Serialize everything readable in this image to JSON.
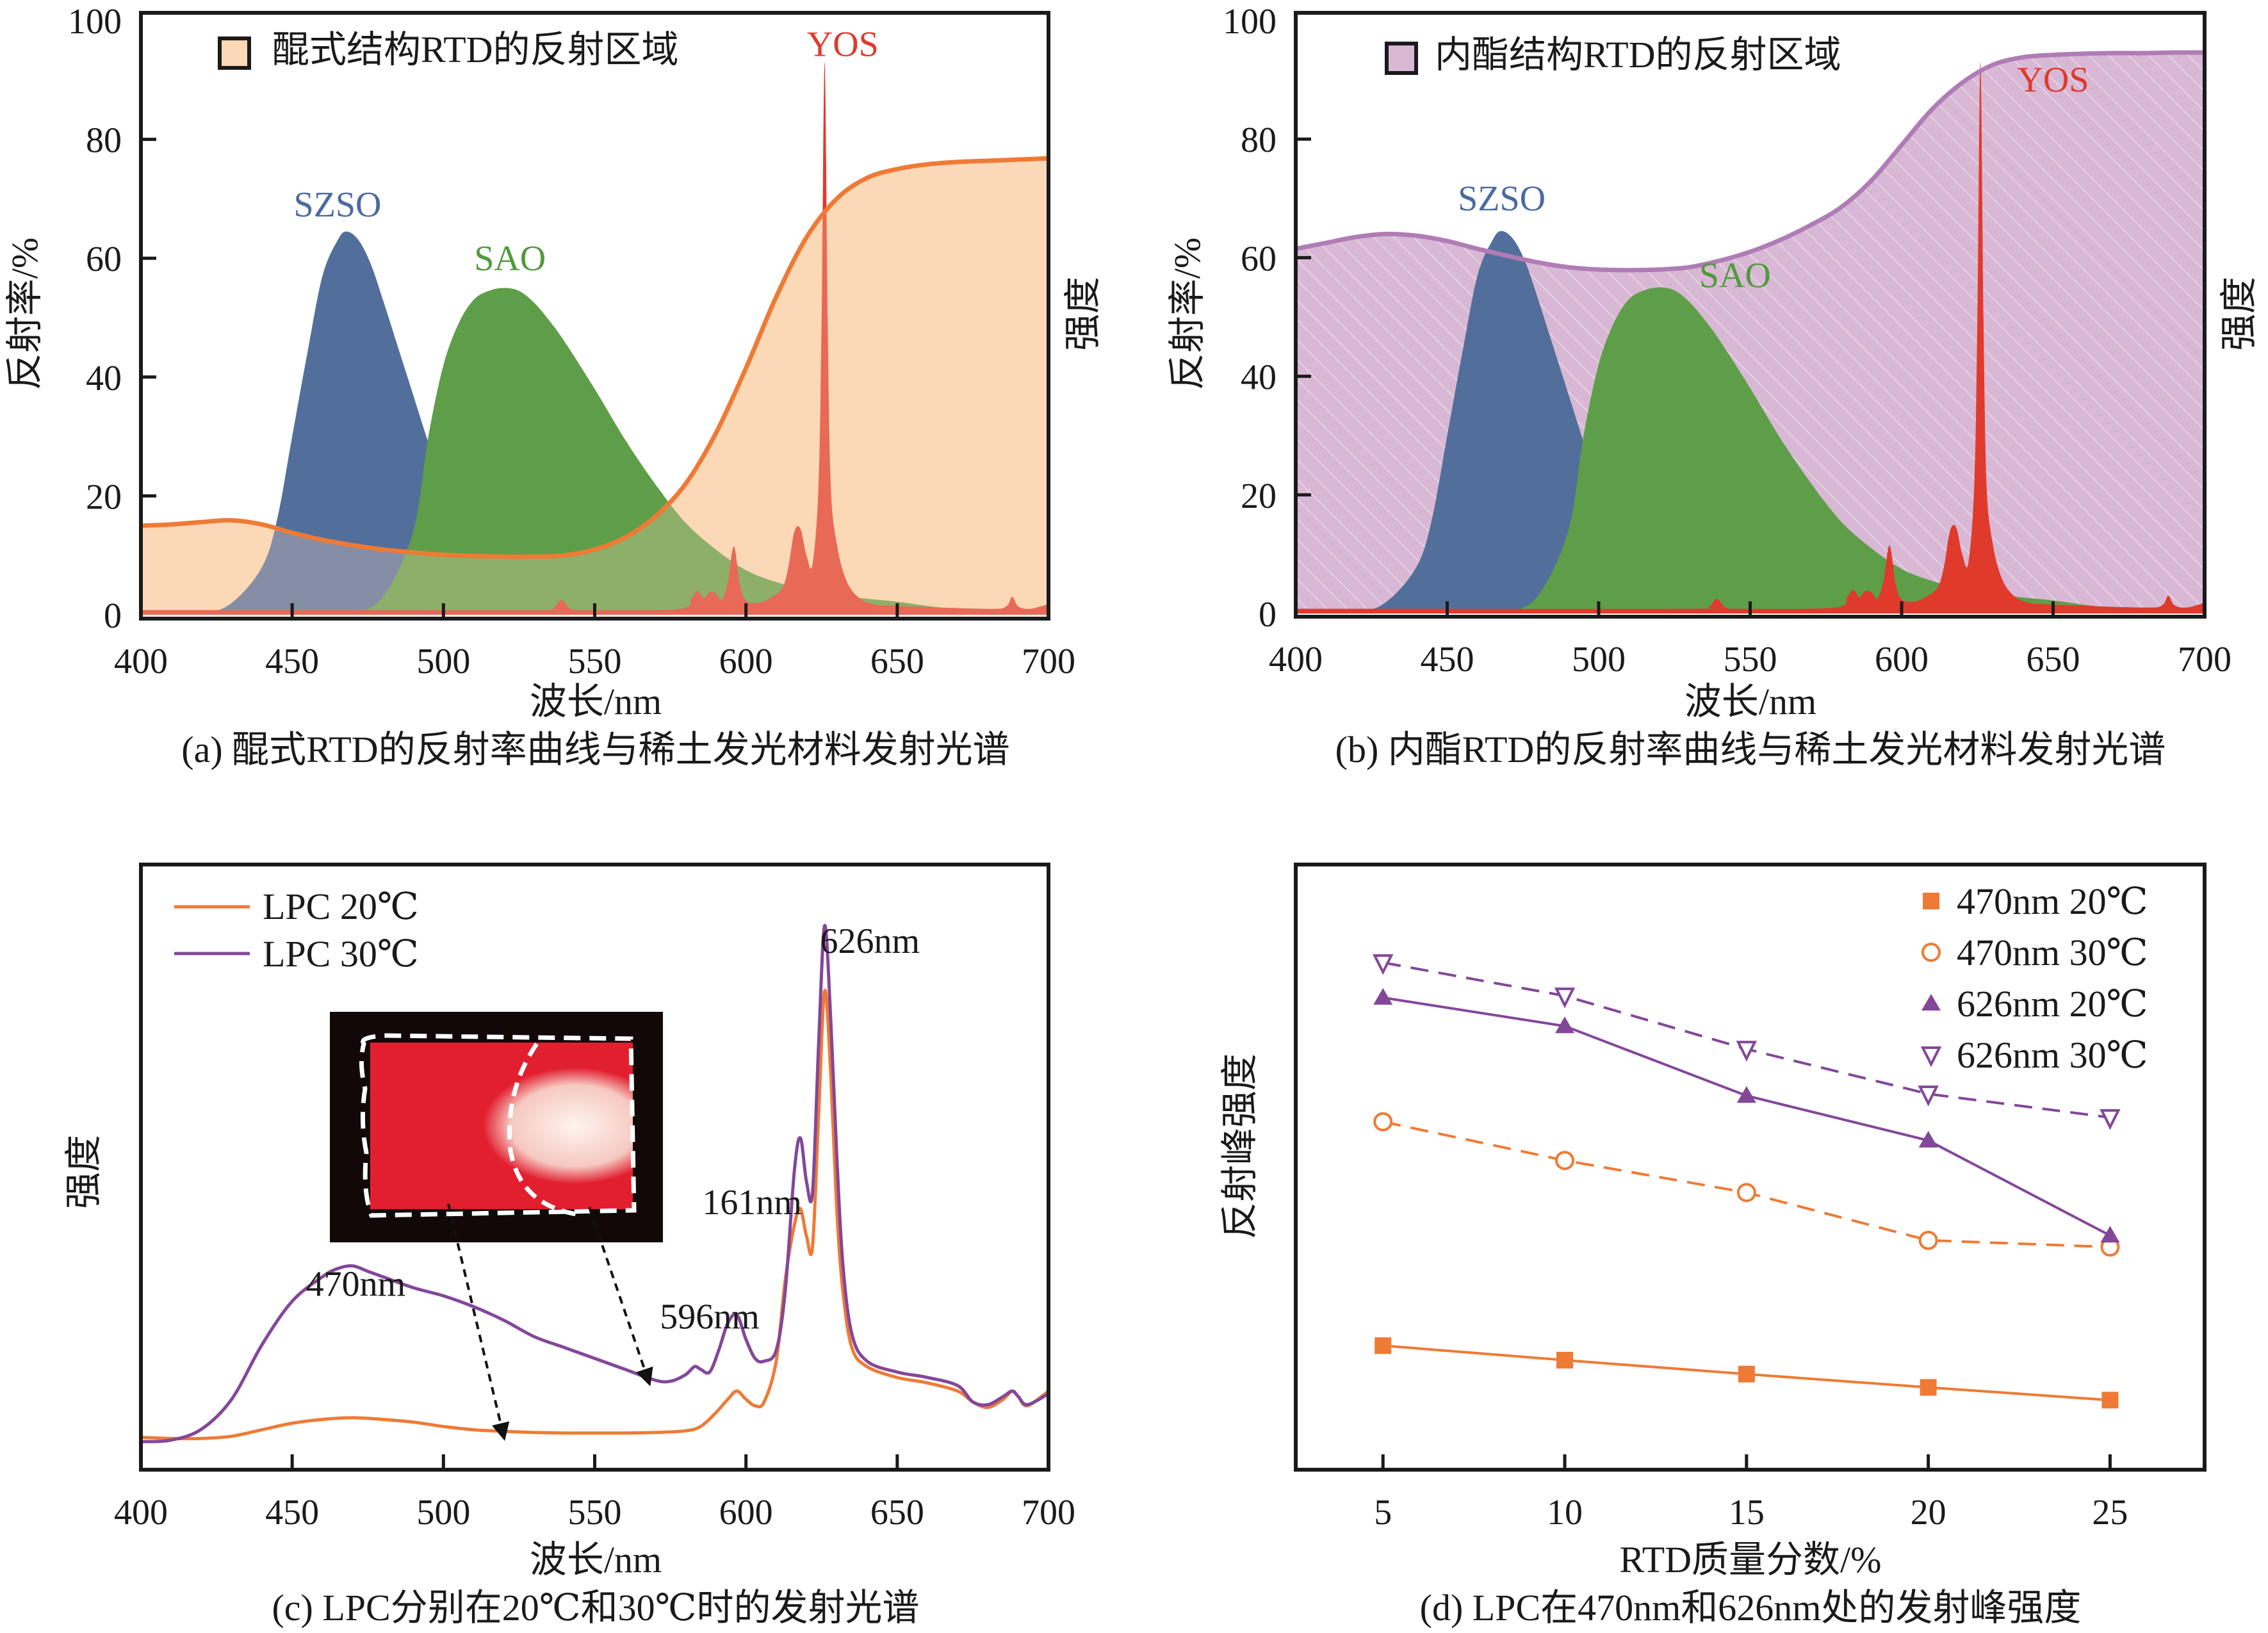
{
  "figure": {
    "colors": {
      "szso": "#526f9c",
      "sao": "#5e9e48",
      "yos": "#e03a2c",
      "quinone_fill": "#fbd8b6",
      "quinone_line": "#ef7a35",
      "lactone_fill": "#d8b8d4",
      "lactone_line": "#b07cb6",
      "lpc20": "#ef7a35",
      "lpc30": "#83479a",
      "szso_label": "#4a6aa0",
      "sao_label": "#4f9a3c",
      "yos_label": "#e03a2c"
    }
  },
  "chart_data": [
    {
      "id": "a",
      "type": "area",
      "caption": "(a) 醌式RTD的反射率曲线与稀土发光材料发射光谱",
      "xlabel": "波长/nm",
      "ylabel": "反射率/%",
      "ylabel_right": "强度",
      "xlim": [
        400,
        700
      ],
      "ylim": [
        0,
        100
      ],
      "xticks": [
        "400",
        "450",
        "500",
        "550",
        "600",
        "650",
        "700"
      ],
      "yticks": [
        "0",
        "20",
        "40",
        "60",
        "80",
        "100"
      ],
      "legend": {
        "label": "醌式结构RTD的反射区域",
        "position": "top-left"
      },
      "annotations": [
        {
          "text": "SZSO",
          "x": 465,
          "y": 67,
          "color_key": "szso_label"
        },
        {
          "text": "SAO",
          "x": 522,
          "y": 58,
          "color_key": "sao_label"
        },
        {
          "text": "YOS",
          "x": 632,
          "y": 94,
          "color_key": "yos_label"
        }
      ],
      "reflectance": {
        "name": "醌式结构RTD的反射区域",
        "x": [
          400,
          410,
          420,
          430,
          440,
          450,
          460,
          470,
          480,
          490,
          500,
          510,
          520,
          530,
          540,
          550,
          560,
          570,
          580,
          590,
          600,
          610,
          620,
          630,
          640,
          650,
          660,
          670,
          680,
          690,
          700
        ],
        "y": [
          15,
          15.2,
          15.6,
          15.9,
          15.2,
          13.8,
          12.6,
          11.7,
          11.0,
          10.5,
          10.1,
          9.9,
          9.8,
          9.8,
          10.0,
          11.0,
          13.0,
          16.5,
          22.0,
          30.5,
          41.5,
          53.5,
          63.5,
          70.0,
          73.5,
          75.0,
          75.8,
          76.2,
          76.4,
          76.6,
          76.8
        ]
      },
      "emission": [
        {
          "name": "SZSO",
          "x": [
            400,
            420,
            430,
            440,
            445,
            450,
            455,
            460,
            465,
            468,
            472,
            476,
            480,
            485,
            490,
            495,
            500,
            510,
            520,
            530,
            540,
            550,
            560,
            570,
            580,
            590,
            600
          ],
          "y": [
            0,
            0.3,
            2,
            8,
            16,
            30,
            44,
            57,
            63,
            64.5,
            63,
            59,
            53,
            45,
            37,
            29,
            22,
            13.5,
            9,
            6.5,
            5,
            3.8,
            2.7,
            1.8,
            1.2,
            0.7,
            0
          ]
        },
        {
          "name": "SAO",
          "x": [
            470,
            480,
            490,
            495,
            500,
            505,
            510,
            515,
            520,
            525,
            530,
            535,
            540,
            550,
            560,
            570,
            580,
            590,
            600,
            610,
            620,
            630,
            640,
            650,
            660,
            670,
            680,
            690,
            700
          ],
          "y": [
            0,
            3,
            14,
            30,
            42,
            49,
            53,
            54.5,
            55,
            54.5,
            52.5,
            49.5,
            46,
            38,
            29.5,
            22,
            15.5,
            11,
            7.5,
            5.5,
            4.2,
            3.3,
            2.7,
            2.2,
            1.5,
            0.9,
            0.5,
            0.3,
            0.2
          ]
        },
        {
          "name": "YOS",
          "x": [
            400,
            530,
            536,
            539,
            542,
            548,
            578,
            582,
            584,
            586,
            588,
            590,
            592,
            594,
            596,
            598,
            600,
            604,
            608,
            612,
            614,
            616,
            618,
            620,
            622,
            624,
            625,
            626,
            627,
            628,
            630,
            633,
            637,
            642,
            650,
            680,
            686,
            688,
            690,
            694,
            700
          ],
          "y": [
            0.8,
            0.8,
            1.0,
            2.5,
            1.0,
            0.8,
            1.0,
            2.8,
            4.0,
            2.8,
            3.8,
            3.6,
            2.5,
            5.5,
            11.5,
            5.0,
            2.4,
            2.0,
            2.8,
            4.5,
            8.0,
            14.0,
            14.5,
            10.0,
            8.5,
            22.0,
            50.0,
            93.0,
            50.0,
            22.0,
            12.0,
            6.0,
            3.0,
            1.8,
            1.5,
            1.0,
            1.4,
            3.0,
            1.4,
            1.0,
            1.8
          ]
        }
      ]
    },
    {
      "id": "b",
      "type": "area",
      "caption": "(b) 内酯RTD的反射率曲线与稀土发光材料发射光谱",
      "xlabel": "波长/nm",
      "ylabel": "反射率/%",
      "ylabel_right": "强度",
      "xlim": [
        400,
        700
      ],
      "ylim": [
        0,
        100
      ],
      "xticks": [
        "400",
        "450",
        "500",
        "550",
        "600",
        "650",
        "700"
      ],
      "yticks": [
        "0",
        "20",
        "40",
        "60",
        "80",
        "100"
      ],
      "legend": {
        "label": "内酯结构RTD的反射区域",
        "position": "top-left"
      },
      "annotations": [
        {
          "text": "SZSO",
          "x": 468,
          "y": 68,
          "color_key": "szso_label"
        },
        {
          "text": "SAO",
          "x": 545,
          "y": 55,
          "color_key": "sao_label"
        },
        {
          "text": "YOS",
          "x": 650,
          "y": 88,
          "color_key": "yos_label"
        }
      ],
      "reflectance": {
        "name": "内酯结构RTD的反射区域",
        "x": [
          400,
          410,
          420,
          430,
          440,
          450,
          460,
          470,
          480,
          490,
          500,
          510,
          520,
          530,
          540,
          550,
          560,
          570,
          580,
          590,
          600,
          610,
          620,
          630,
          640,
          650,
          660,
          670,
          680,
          690,
          700
        ],
        "y": [
          61.5,
          62.5,
          63.5,
          64.0,
          63.7,
          62.8,
          61.5,
          60.3,
          59.2,
          58.4,
          58.0,
          57.9,
          58.0,
          58.4,
          59.5,
          61.0,
          63.0,
          65.5,
          68.5,
          73.0,
          79.0,
          85.0,
          89.5,
          92.5,
          93.8,
          94.2,
          94.4,
          94.5,
          94.5,
          94.6,
          94.6
        ]
      },
      "emission": [
        {
          "name": "SZSO",
          "x": [
            400,
            420,
            430,
            440,
            445,
            450,
            455,
            460,
            465,
            468,
            472,
            476,
            480,
            485,
            490,
            495,
            500,
            510,
            520,
            530,
            540,
            550,
            560,
            570,
            580,
            590,
            600
          ],
          "y": [
            0,
            0.3,
            2,
            8,
            16,
            30,
            44,
            57,
            63,
            64.5,
            63,
            59,
            53,
            45,
            37,
            29,
            22,
            13.5,
            9,
            6.5,
            5,
            3.8,
            2.7,
            1.8,
            1.2,
            0.7,
            0
          ]
        },
        {
          "name": "SAO",
          "x": [
            470,
            480,
            490,
            495,
            500,
            505,
            510,
            515,
            520,
            525,
            530,
            535,
            540,
            550,
            560,
            570,
            580,
            590,
            600,
            610,
            620,
            630,
            640,
            650,
            660,
            670,
            680,
            690,
            700
          ],
          "y": [
            0,
            3,
            14,
            30,
            42,
            49,
            53,
            54.5,
            55,
            54.5,
            52.5,
            49.5,
            46,
            38,
            29.5,
            22,
            15.5,
            11,
            7.5,
            5.5,
            4.2,
            3.3,
            2.7,
            2.2,
            1.5,
            0.9,
            0.5,
            0.3,
            0.2
          ]
        },
        {
          "name": "YOS",
          "x": [
            400,
            530,
            536,
            539,
            542,
            548,
            578,
            582,
            584,
            586,
            588,
            590,
            592,
            594,
            596,
            598,
            600,
            604,
            608,
            612,
            614,
            616,
            618,
            620,
            622,
            624,
            625,
            626,
            627,
            628,
            630,
            633,
            637,
            642,
            650,
            680,
            686,
            688,
            690,
            694,
            700
          ],
          "y": [
            0.8,
            0.8,
            1.0,
            2.5,
            1.0,
            0.8,
            1.0,
            2.8,
            4.0,
            2.8,
            3.8,
            3.6,
            2.5,
            5.5,
            11.5,
            5.0,
            2.4,
            2.0,
            2.8,
            4.5,
            8.0,
            14.0,
            14.5,
            10.0,
            8.5,
            22.0,
            50.0,
            93.0,
            50.0,
            22.0,
            12.0,
            6.0,
            3.0,
            1.8,
            1.5,
            1.0,
            1.4,
            3.0,
            1.4,
            1.0,
            1.8
          ]
        }
      ]
    },
    {
      "id": "c",
      "type": "line",
      "caption": "(c) LPC分别在20℃和30℃时的发射光谱",
      "xlabel": "波长/nm",
      "ylabel": "强度",
      "xlim": [
        400,
        700
      ],
      "ylim": [
        0,
        100
      ],
      "xticks": [
        "400",
        "450",
        "500",
        "550",
        "600",
        "650",
        "700"
      ],
      "legend": {
        "position": "top-left"
      },
      "annotations": [
        {
          "text": "626nm",
          "x": 641,
          "y": 92
        },
        {
          "text": "161nm",
          "x": 602,
          "y": 44
        },
        {
          "text": "470nm",
          "x": 471,
          "y": 29
        },
        {
          "text": "596nm",
          "x": 588,
          "y": 23
        }
      ],
      "inset": {
        "description": "LPC sample photo",
        "arrow_targets": [
          [
            520,
            3
          ],
          [
            568,
            13
          ]
        ]
      },
      "series": [
        {
          "name": "LPC 20℃",
          "color_key": "lpc20",
          "x": [
            400,
            410,
            420,
            430,
            440,
            450,
            460,
            470,
            480,
            490,
            500,
            510,
            520,
            530,
            540,
            550,
            560,
            570,
            580,
            585,
            590,
            594,
            597,
            600,
            603,
            606,
            610,
            613,
            616,
            618,
            620,
            622,
            624,
            626,
            628,
            630,
            632,
            635,
            640,
            650,
            660,
            670,
            675,
            680,
            685,
            688,
            690,
            693,
            700
          ],
          "y": [
            3.0,
            2.8,
            2.8,
            3.2,
            4.4,
            5.6,
            6.3,
            6.6,
            6.3,
            5.8,
            5.0,
            4.4,
            4.1,
            3.9,
            3.8,
            3.8,
            3.8,
            3.9,
            4.2,
            5.0,
            7.5,
            10.0,
            11.5,
            10.0,
            8.8,
            9.5,
            17.0,
            32.0,
            42.0,
            45.0,
            40.0,
            38.0,
            62.0,
            85.0,
            70.0,
            45.0,
            30.0,
            19.5,
            16.0,
            14.0,
            13.0,
            11.5,
            9.5,
            8.5,
            10.0,
            11.5,
            10.5,
            8.8,
            11.5
          ]
        },
        {
          "name": "LPC 30℃",
          "color_key": "lpc30",
          "x": [
            400,
            410,
            420,
            430,
            440,
            450,
            460,
            465,
            470,
            475,
            480,
            490,
            500,
            510,
            520,
            530,
            540,
            550,
            560,
            570,
            575,
            580,
            583,
            585,
            588,
            591,
            594,
            597,
            600,
            603,
            606,
            610,
            613,
            616,
            618,
            620,
            622,
            624,
            626,
            628,
            630,
            632,
            635,
            640,
            650,
            660,
            670,
            675,
            680,
            685,
            688,
            690,
            693,
            700
          ],
          "y": [
            2.2,
            2.5,
            4.5,
            10.0,
            20.0,
            28.0,
            32.5,
            34.0,
            34.5,
            33.5,
            32.5,
            30.5,
            29.0,
            27.0,
            24.5,
            21.5,
            19.5,
            17.5,
            15.5,
            13.5,
            13.3,
            14.5,
            16.0,
            15.5,
            15.0,
            19.0,
            24.0,
            25.5,
            21.0,
            17.5,
            17.0,
            19.0,
            30.0,
            52.0,
            58.0,
            50.0,
            48.0,
            75.0,
            97.0,
            80.0,
            55.0,
            35.0,
            22.0,
            17.0,
            15.0,
            14.0,
            12.5,
            9.5,
            9.0,
            10.5,
            11.5,
            10.5,
            9.0,
            11.0
          ]
        }
      ]
    },
    {
      "id": "d",
      "type": "line",
      "caption": "(d) LPC在470nm和626nm处的发射峰强度",
      "xlabel": "RTD质量分数/%",
      "ylabel": "反射峰强度",
      "categories": [
        "5",
        "10",
        "15",
        "20",
        "25"
      ],
      "x": [
        5,
        10,
        15,
        20,
        25
      ],
      "xlim": [
        2.6,
        27.6
      ],
      "ylim": [
        0,
        100
      ],
      "legend": {
        "position": "top-right"
      },
      "series": [
        {
          "name": "470nm 20℃",
          "marker": "square-filled",
          "dashed": false,
          "color_key": "lpc20",
          "values": [
            20.5,
            18.1,
            15.8,
            13.6,
            11.5
          ]
        },
        {
          "name": "470nm 30℃",
          "marker": "circle-open",
          "dashed": true,
          "color_key": "lpc20",
          "values": [
            57.5,
            51.1,
            45.8,
            37.9,
            36.8
          ]
        },
        {
          "name": "626nm 20℃",
          "marker": "triangle-up-filled",
          "dashed": false,
          "color_key": "lpc30",
          "values": [
            78.0,
            73.3,
            61.8,
            54.4,
            38.7
          ]
        },
        {
          "name": "626nm 30℃",
          "marker": "triangle-down-open",
          "dashed": true,
          "color_key": "lpc30",
          "values": [
            83.8,
            78.3,
            69.5,
            62.1,
            58.2
          ]
        }
      ]
    }
  ]
}
